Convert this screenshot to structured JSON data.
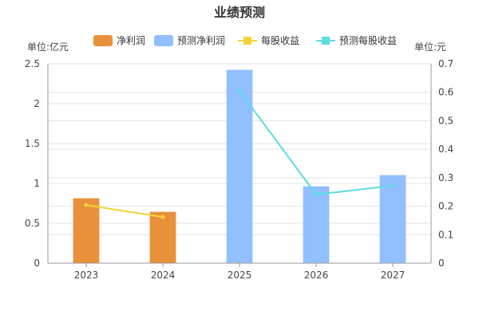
{
  "chart_data": {
    "type": "bar",
    "title": "业绩预测",
    "left_unit": "单位:亿元",
    "right_unit": "单位:元",
    "categories": [
      "2023",
      "2024",
      "2025",
      "2026",
      "2027"
    ],
    "ylim": [
      0,
      2.5
    ],
    "y_ticks": [
      "0",
      "0.5",
      "1",
      "1.5",
      "2",
      "2.5"
    ],
    "y2lim": [
      0,
      0.7
    ],
    "y2_ticks": [
      "0",
      "0.1",
      "0.2",
      "0.3",
      "0.4",
      "0.5",
      "0.6",
      "0.7"
    ],
    "grid": true,
    "legend_position": "top",
    "series": [
      {
        "name": "净利润",
        "kind": "bar",
        "axis": "left",
        "color": "#E8913A",
        "values": [
          0.81,
          0.64,
          null,
          null,
          null
        ]
      },
      {
        "name": "预测净利润",
        "kind": "bar",
        "axis": "left",
        "color": "#92BFFF",
        "values": [
          null,
          null,
          2.42,
          0.96,
          1.1
        ]
      },
      {
        "name": "每股收益",
        "kind": "line",
        "axis": "right",
        "color": "#F5D23A",
        "values": [
          0.204,
          0.162,
          null,
          null,
          null
        ]
      },
      {
        "name": "预测每股收益",
        "kind": "line",
        "axis": "right",
        "color": "#5CDDE0",
        "values": [
          null,
          null,
          0.605,
          0.241,
          0.272
        ]
      }
    ]
  }
}
